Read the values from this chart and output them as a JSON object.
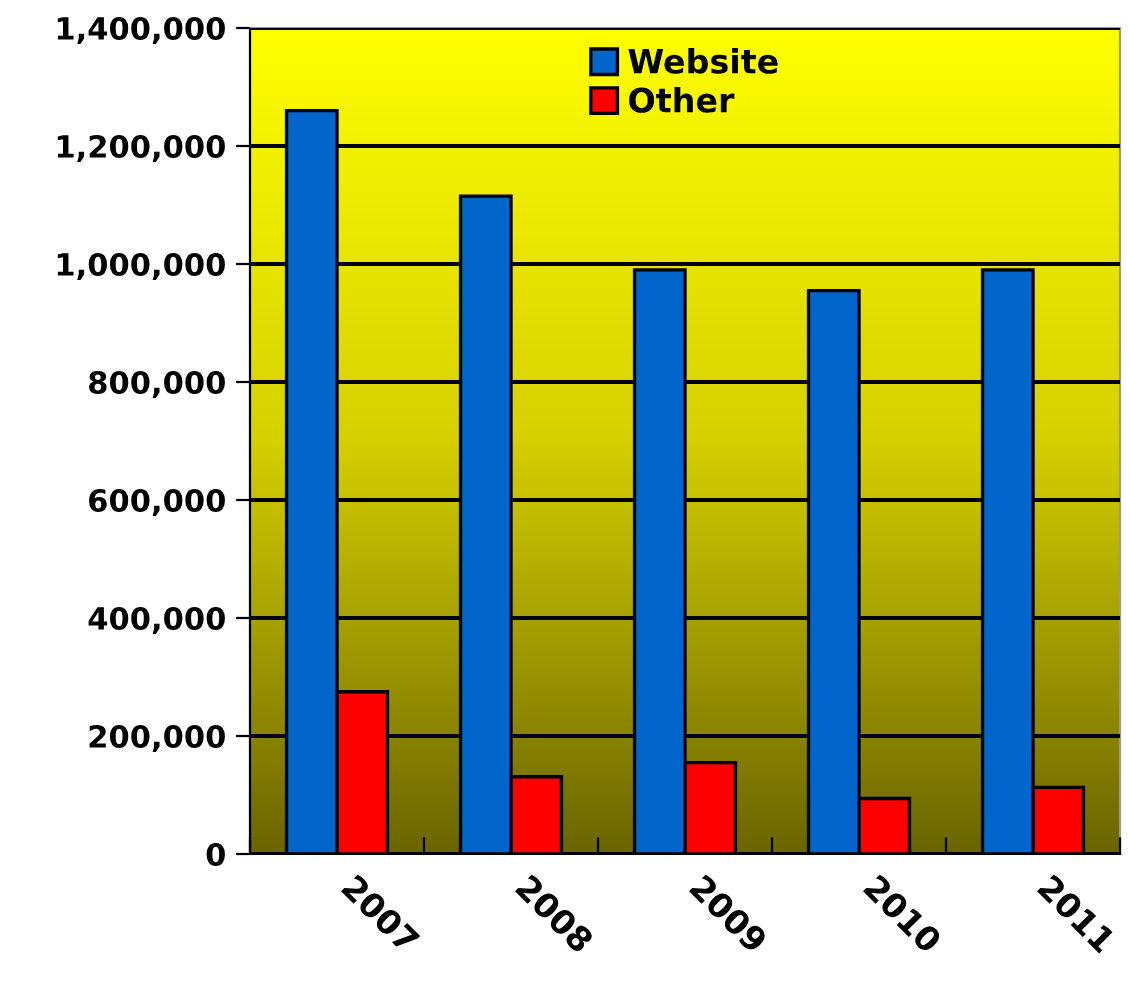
{
  "chart_data": {
    "type": "bar",
    "categories": [
      "2007",
      "2008",
      "2009",
      "2010",
      "2011"
    ],
    "series": [
      {
        "name": "Website",
        "color": "#0066cc",
        "values": [
          1260000,
          1115000,
          990000,
          955000,
          990000
        ]
      },
      {
        "name": "Other",
        "color": "#ff0000",
        "values": [
          275000,
          131000,
          155000,
          94000,
          113000
        ]
      }
    ],
    "ylim": [
      0,
      1400000
    ],
    "yticks": [
      {
        "value": 0,
        "label": "0"
      },
      {
        "value": 200000,
        "label": "200,000"
      },
      {
        "value": 400000,
        "label": "400,000"
      },
      {
        "value": 600000,
        "label": "600,000"
      },
      {
        "value": 800000,
        "label": "800,000"
      },
      {
        "value": 1000000,
        "label": "1,000,000"
      },
      {
        "value": 1200000,
        "label": "1,200,000"
      },
      {
        "value": 1400000,
        "label": "1,400,000"
      }
    ],
    "grid": "y",
    "legend": "top"
  }
}
